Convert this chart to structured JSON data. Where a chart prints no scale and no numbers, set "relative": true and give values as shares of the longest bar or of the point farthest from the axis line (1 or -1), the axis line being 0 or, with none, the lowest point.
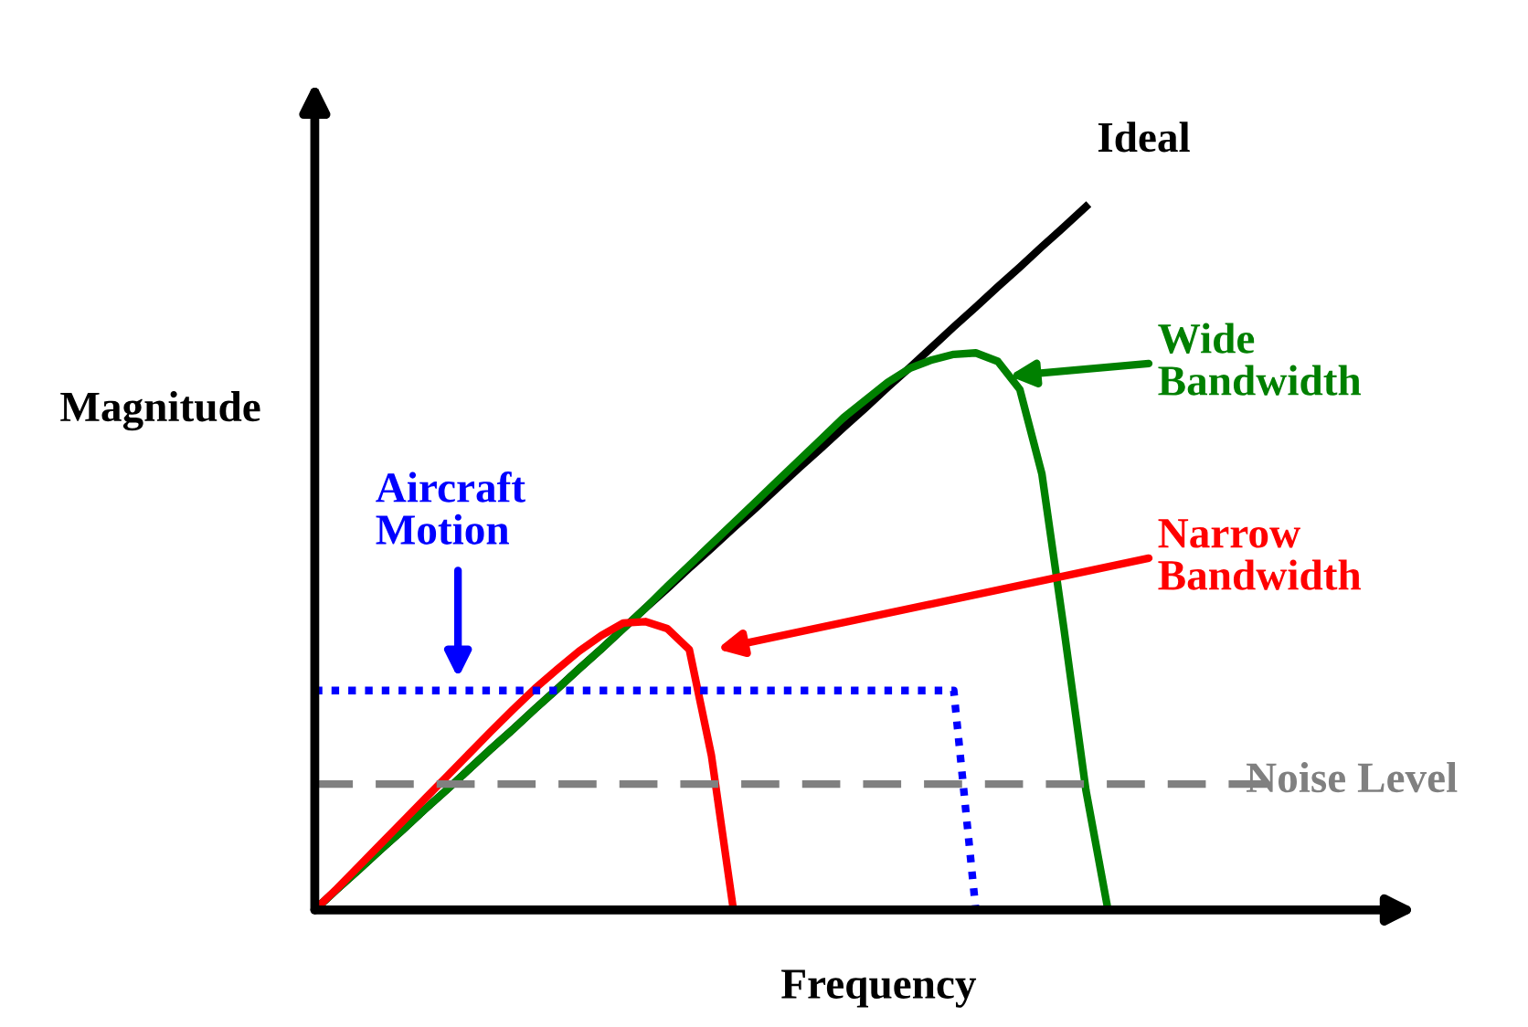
{
  "chart_data": {
    "type": "line",
    "relative": true,
    "xlabel": "Frequency",
    "ylabel": "Magnitude",
    "categories": [
      null,
      null,
      null,
      null,
      null,
      null,
      null,
      null,
      null,
      null,
      null,
      null,
      null,
      null,
      null,
      null,
      null,
      null,
      null,
      null,
      null,
      null,
      null,
      null,
      null,
      null,
      null,
      null,
      null,
      null,
      null,
      null,
      null,
      null,
      null,
      null,
      null,
      null,
      null,
      null,
      null,
      null,
      null,
      null,
      null,
      null,
      null,
      null,
      null,
      null,
      null
    ],
    "series": [
      {
        "name": "Ideal",
        "color": "#000000",
        "values": [
          0,
          0.029,
          0.057,
          0.086,
          0.114,
          0.143,
          0.171,
          0.2,
          0.229,
          0.257,
          0.286,
          0.314,
          0.343,
          0.371,
          0.4,
          0.429,
          0.457,
          0.486,
          0.514,
          0.543,
          0.571,
          0.6,
          0.629,
          0.657,
          0.686,
          0.714,
          0.743,
          0.771,
          0.8,
          0.829,
          0.857,
          0.886,
          0.914,
          0.943,
          0.971,
          1,
          null,
          null,
          null,
          null,
          null,
          null,
          null,
          null,
          null,
          null,
          null,
          null,
          null,
          null,
          null
        ]
      },
      {
        "name": "Wide\nBandwidth",
        "color": "#008000",
        "values": [
          0,
          0.029,
          0.057,
          0.086,
          0.114,
          0.143,
          0.171,
          0.2,
          0.229,
          0.257,
          0.286,
          0.314,
          0.343,
          0.371,
          0.4,
          0.429,
          0.46,
          0.49,
          0.52,
          0.55,
          0.58,
          0.61,
          0.64,
          0.67,
          0.7,
          0.725,
          0.75,
          0.77,
          0.782,
          0.79,
          0.792,
          0.78,
          0.74,
          0.62,
          0.4,
          0.17,
          0,
          null,
          null,
          null,
          null,
          null,
          null,
          null,
          null,
          null,
          null,
          null,
          null,
          null,
          null
        ]
      },
      {
        "name": "Narrow\nBandwidth",
        "color": "#ff0000",
        "values": [
          0,
          0.03,
          0.062,
          0.094,
          0.126,
          0.158,
          0.19,
          0.222,
          0.254,
          0.285,
          0.315,
          0.342,
          0.368,
          0.39,
          0.408,
          0.41,
          0.4,
          0.37,
          0.22,
          0,
          null,
          null,
          null,
          null,
          null,
          null,
          null,
          null,
          null,
          null,
          null,
          null,
          null,
          null,
          null,
          null,
          null,
          null,
          null,
          null,
          null,
          null,
          null,
          null,
          null,
          null,
          null,
          null,
          null,
          null,
          null
        ]
      },
      {
        "name": "Aircraft\nMotion",
        "color": "#0000ff",
        "line_style": "dotted",
        "values": [
          0.312,
          0.312,
          0.312,
          0.312,
          0.312,
          0.312,
          0.312,
          0.312,
          0.312,
          0.312,
          0.312,
          0.312,
          0.312,
          0.312,
          0.312,
          0.312,
          0.312,
          0.312,
          0.312,
          0.312,
          0.312,
          0.312,
          0.312,
          0.312,
          0.312,
          0.312,
          0.312,
          0.312,
          0.312,
          0.312,
          0,
          null,
          null,
          null,
          null,
          null,
          null,
          null,
          null,
          null,
          null,
          null,
          null,
          null,
          null,
          null,
          null,
          null,
          null,
          null,
          null
        ]
      },
      {
        "name": "Noise Level",
        "color": "#808080",
        "line_style": "dashed",
        "values": [
          0.179,
          0.179,
          0.179,
          0.179,
          0.179,
          0.179,
          0.179,
          0.179,
          0.179,
          0.179,
          0.179,
          0.179,
          0.179,
          0.179,
          0.179,
          0.179,
          0.179,
          0.179,
          0.179,
          0.179,
          0.179,
          0.179,
          0.179,
          0.179,
          0.179,
          0.179,
          0.179,
          0.179,
          0.179,
          0.179,
          0.179,
          0.179,
          0.179,
          0.179,
          0.179,
          0.179,
          0.179,
          0.179,
          0.179,
          0.179,
          0.179,
          0.179,
          0.179,
          0.179,
          0.179,
          null,
          null,
          null,
          null,
          null,
          null
        ]
      }
    ]
  }
}
